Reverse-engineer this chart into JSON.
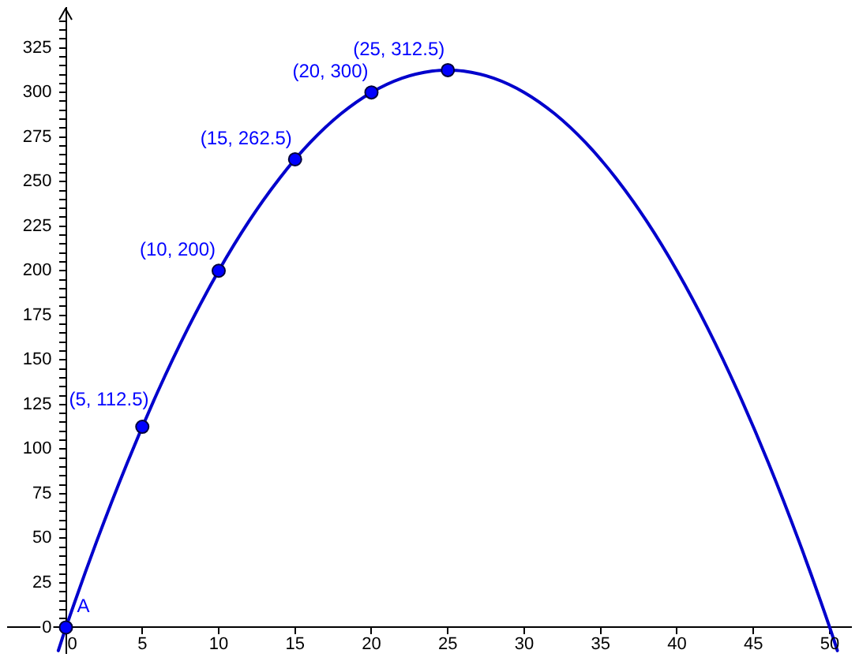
{
  "chart_data": {
    "type": "line",
    "xlim": [
      -3.8,
      51.4
    ],
    "ylim": [
      -14.4,
      347.4
    ],
    "xticks": [
      0,
      5,
      10,
      15,
      20,
      25,
      30,
      35,
      40,
      45,
      50
    ],
    "yticks": [
      0,
      {
        "value": 5,
        "label": null
      },
      {
        "value": 10,
        "label": null
      },
      {
        "value": 15,
        "label": null
      },
      {
        "value": 20,
        "label": null
      },
      25,
      {
        "value": 30,
        "label": null
      },
      {
        "value": 35,
        "label": null
      },
      {
        "value": 40,
        "label": null
      },
      {
        "value": 45,
        "label": null
      },
      50,
      {
        "value": 55,
        "label": null
      },
      {
        "value": 60,
        "label": null
      },
      {
        "value": 65,
        "label": null
      },
      {
        "value": 70,
        "label": null
      },
      75,
      {
        "value": 80,
        "label": null
      },
      {
        "value": 85,
        "label": null
      },
      {
        "value": 90,
        "label": null
      },
      {
        "value": 95,
        "label": null
      },
      100,
      {
        "value": 105,
        "label": null
      },
      {
        "value": 110,
        "label": null
      },
      {
        "value": 115,
        "label": null
      },
      {
        "value": 120,
        "label": null
      },
      125,
      {
        "value": 130,
        "label": null
      },
      {
        "value": 135,
        "label": null
      },
      {
        "value": 140,
        "label": null
      },
      {
        "value": 145,
        "label": null
      },
      150,
      {
        "value": 155,
        "label": null
      },
      {
        "value": 160,
        "label": null
      },
      {
        "value": 165,
        "label": null
      },
      {
        "value": 170,
        "label": null
      },
      175,
      {
        "value": 180,
        "label": null
      },
      {
        "value": 185,
        "label": null
      },
      {
        "value": 190,
        "label": null
      },
      {
        "value": 195,
        "label": null
      },
      200,
      {
        "value": 205,
        "label": null
      },
      {
        "value": 210,
        "label": null
      },
      {
        "value": 215,
        "label": null
      },
      {
        "value": 220,
        "label": null
      },
      225,
      {
        "value": 230,
        "label": null
      },
      {
        "value": 235,
        "label": null
      },
      {
        "value": 240,
        "label": null
      },
      {
        "value": 245,
        "label": null
      },
      250,
      {
        "value": 255,
        "label": null
      },
      {
        "value": 260,
        "label": null
      },
      {
        "value": 265,
        "label": null
      },
      {
        "value": 270,
        "label": null
      },
      275,
      {
        "value": 280,
        "label": null
      },
      {
        "value": 285,
        "label": null
      },
      {
        "value": 290,
        "label": null
      },
      {
        "value": 295,
        "label": null
      },
      300,
      {
        "value": 305,
        "label": null
      },
      {
        "value": 310,
        "label": null
      },
      {
        "value": 315,
        "label": null
      },
      {
        "value": 320,
        "label": null
      },
      325,
      {
        "value": 330,
        "label": null
      },
      {
        "value": 335,
        "label": null
      },
      {
        "value": 340,
        "label": null
      }
    ],
    "series": [
      {
        "color": "#0000cc",
        "x": [
          -0.5,
          0,
          2,
          4,
          6,
          8,
          10,
          12,
          14,
          16,
          18,
          20,
          22,
          24,
          25,
          26,
          28,
          30,
          32,
          34,
          36,
          38,
          40,
          42,
          44,
          46,
          48,
          50,
          50.5
        ],
        "values": [
          -13,
          0,
          48,
          92,
          132,
          168,
          200,
          228,
          252,
          272,
          288,
          300,
          308,
          312,
          312.5,
          312,
          308,
          300,
          288,
          272,
          252,
          228,
          200,
          168,
          132,
          92,
          48,
          0,
          -13
        ]
      },
      {
        "type": "scatter",
        "color": "#0000ff",
        "marker": "circle",
        "x": [
          0,
          5,
          10,
          15,
          20,
          25
        ],
        "values": [
          0,
          112.5,
          200,
          262.5,
          300,
          312.5
        ]
      }
    ],
    "annotations": [
      {
        "text": "A",
        "x": 0,
        "y": 0
      },
      {
        "text": "(5, 112.5)",
        "x": 5,
        "y": 112.5
      },
      {
        "text": "(10, 200)",
        "x": 10,
        "y": 200
      },
      {
        "text": "(15, 262.5)",
        "x": 15,
        "y": 262.5
      },
      {
        "text": "(20, 300)",
        "x": 20,
        "y": 300
      },
      {
        "text": "(25, 312.5)",
        "x": 25,
        "y": 312.5
      }
    ]
  }
}
